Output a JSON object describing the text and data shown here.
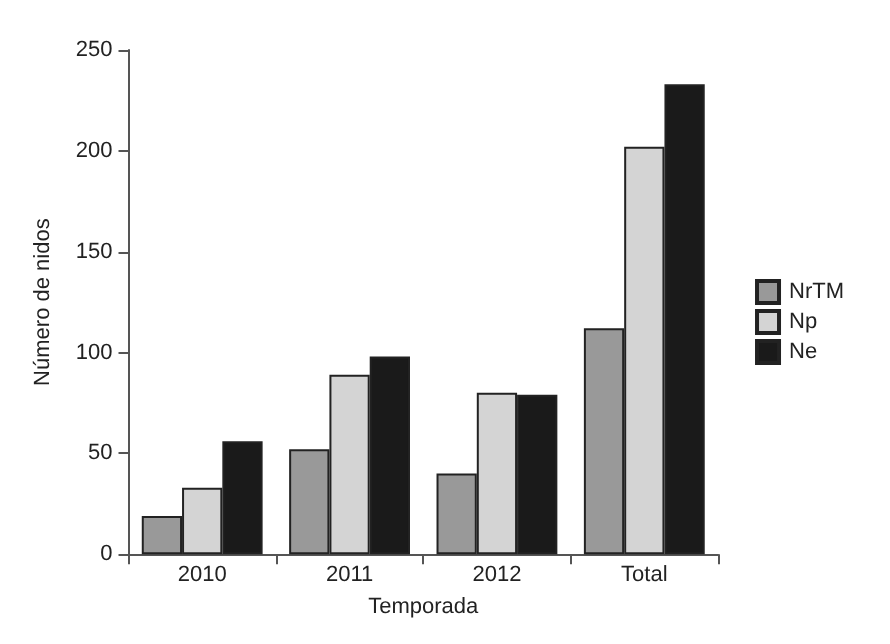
{
  "chart_data": {
    "type": "bar",
    "xlabel": "Temporada",
    "ylabel": "Número de nidos",
    "categories": [
      "2010",
      "2011",
      "2012",
      "Total"
    ],
    "series": [
      {
        "name": "NrTM",
        "color": "#999999",
        "values": [
          19,
          52,
          40,
          112
        ]
      },
      {
        "name": "Np",
        "color": "#d4d4d4",
        "values": [
          33,
          89,
          80,
          202
        ]
      },
      {
        "name": "Ne",
        "color": "#1a1a1a",
        "values": [
          56,
          98,
          79,
          233
        ]
      }
    ],
    "ylim": [
      0,
      250
    ],
    "yticks": [
      0,
      50,
      100,
      150,
      200,
      250
    ],
    "grid": false,
    "legend": "right"
  }
}
